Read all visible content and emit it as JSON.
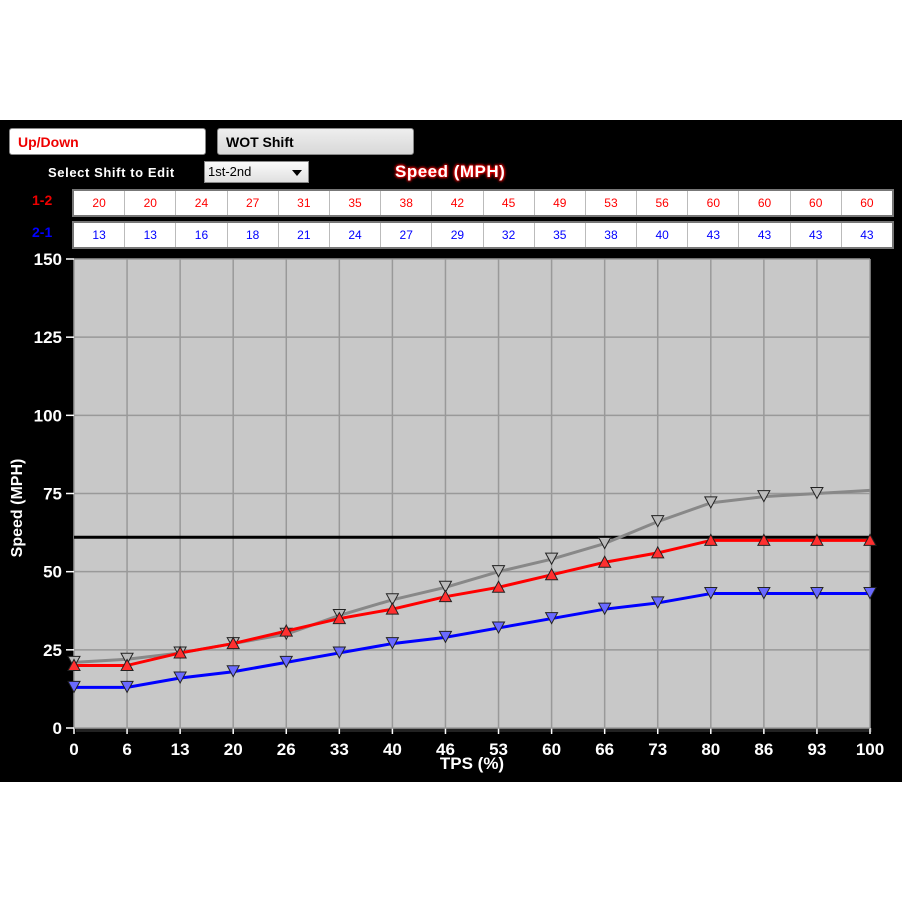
{
  "tabs": [
    {
      "label": "Up/Down",
      "active": true
    },
    {
      "label": "WOT Shift",
      "active": false
    }
  ],
  "shift_select": {
    "label": "Select Shift to Edit",
    "value": "1st-2nd"
  },
  "units_title": "Speed (MPH)",
  "table": {
    "rows": [
      {
        "label": "1-2",
        "color": "#ff0000",
        "values": [
          20,
          20,
          24,
          27,
          31,
          35,
          38,
          42,
          45,
          49,
          53,
          56,
          60,
          60,
          60,
          60
        ]
      },
      {
        "label": "2-1",
        "color": "#0000ff",
        "values": [
          13,
          13,
          16,
          18,
          21,
          24,
          27,
          29,
          32,
          35,
          38,
          40,
          43,
          43,
          43,
          43
        ]
      }
    ]
  },
  "chart_data": {
    "type": "line",
    "xlabel": "TPS (%)",
    "ylabel": "Speed (MPH)",
    "categories": [
      "0",
      "6",
      "13",
      "20",
      "26",
      "33",
      "40",
      "46",
      "53",
      "60",
      "66",
      "73",
      "80",
      "86",
      "93",
      "100"
    ],
    "ylim": [
      0,
      150
    ],
    "yticks": [
      0,
      25,
      50,
      75,
      100,
      125,
      150
    ],
    "grid": true,
    "series": [
      {
        "color": "#888888",
        "marker": "triangle-down",
        "values": [
          21,
          22,
          24,
          27,
          30,
          36,
          41,
          45,
          50,
          54,
          59,
          66,
          72,
          74,
          75,
          76
        ]
      },
      {
        "color": "#ff0000",
        "marker": "triangle-up",
        "values": [
          20,
          20,
          24,
          27,
          31,
          35,
          38,
          42,
          45,
          49,
          53,
          56,
          60,
          60,
          60,
          60
        ]
      },
      {
        "color": "#0000ff",
        "marker": "triangle-down",
        "values": [
          13,
          13,
          16,
          18,
          21,
          24,
          27,
          29,
          32,
          35,
          38,
          40,
          43,
          43,
          43,
          43
        ]
      }
    ],
    "reference_line": {
      "value": 61,
      "color": "#000000"
    }
  }
}
